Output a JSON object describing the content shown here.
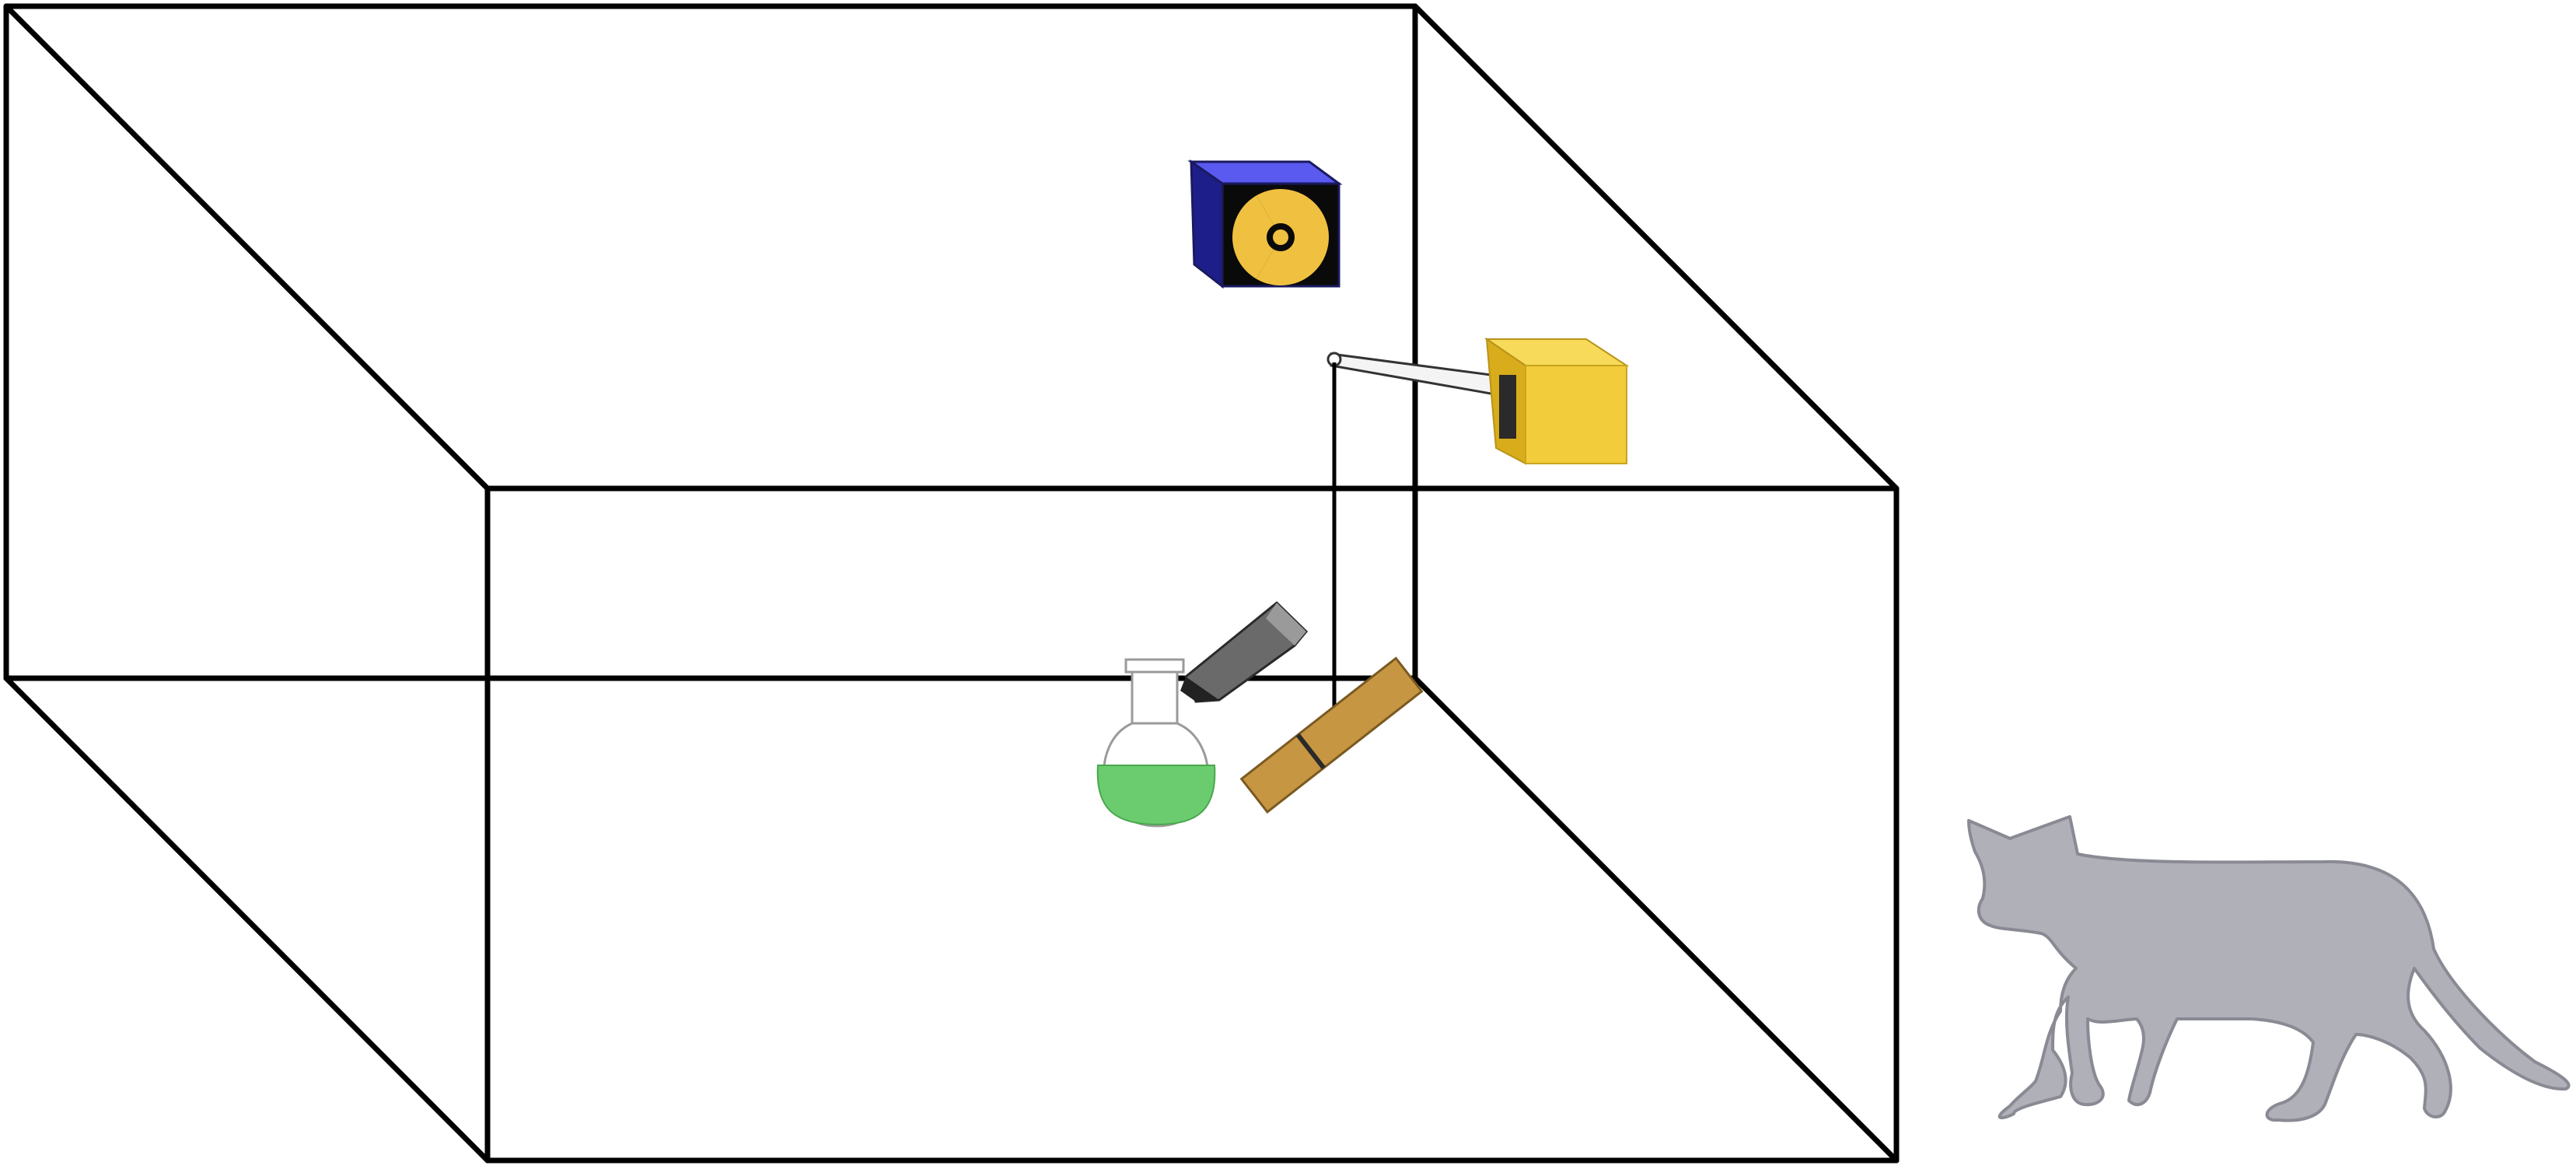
{
  "diagram": {
    "background_color": "#ffffff",
    "line_color": "#000000",
    "objects": [
      {
        "key": "box",
        "icon": "transparent-box-outline"
      },
      {
        "key": "radioactive-source",
        "icon": "radiation-icon",
        "colors": {
          "cube": "#3f3fe6",
          "cube_dark": "#1e1e8a",
          "trefoil": "#f0c040"
        }
      },
      {
        "key": "geiger-counter",
        "icon": "detector-box",
        "colors": {
          "box": "#f2cc3a",
          "box_side": "#d8ac1a"
        }
      },
      {
        "key": "hammer",
        "icon": "hammer-icon",
        "colors": {
          "head": "#5a5a5a",
          "handle": "#c79642"
        }
      },
      {
        "key": "poison-flask",
        "icon": "flask-icon",
        "colors": {
          "liquid": "#6acc6e"
        }
      },
      {
        "key": "cat",
        "icon": "cat-silhouette",
        "colors": {
          "body": "#b0b0b8",
          "outline": "#8a8a94"
        }
      }
    ]
  }
}
